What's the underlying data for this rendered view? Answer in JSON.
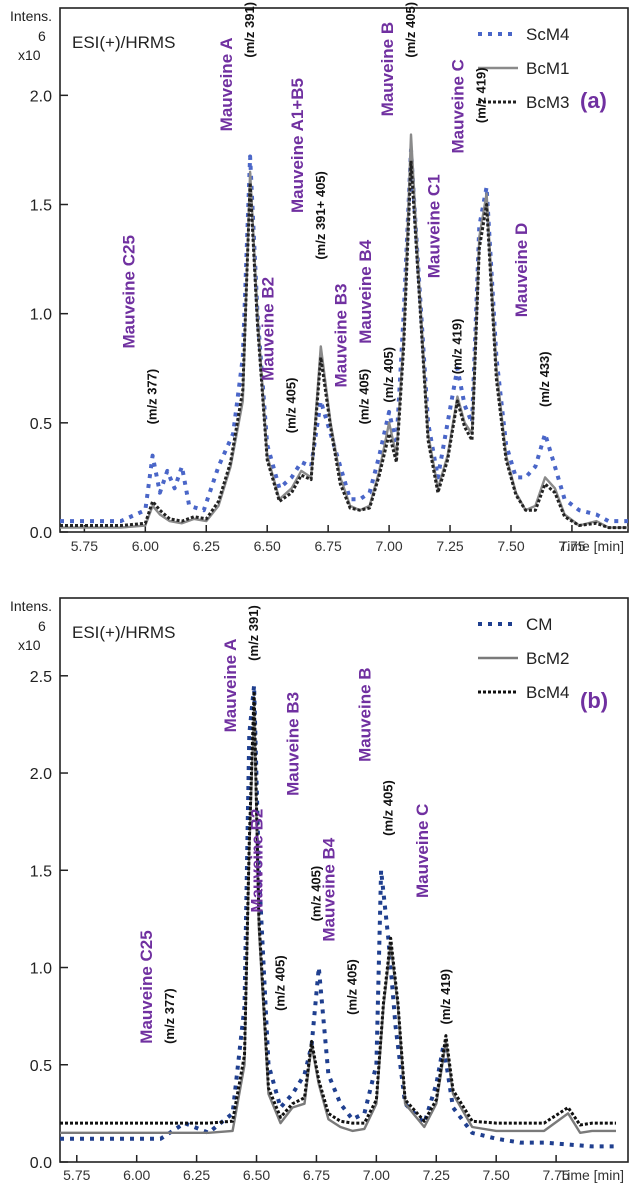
{
  "chart_data": [
    {
      "type": "line",
      "panel_label": "(a)",
      "method_label": "ESI(+)/HRMS",
      "ylabel_top": "Intens.",
      "ylabel_exp": "6",
      "ylabel_mult": "x10",
      "xlabel": "Time [min]",
      "xlim": [
        5.65,
        7.98
      ],
      "ylim": [
        0,
        2.4
      ],
      "xticks": [
        "5.75",
        "6.00",
        "6.25",
        "6.50",
        "6.75",
        "7.00",
        "7.25",
        "7.50",
        "7.75"
      ],
      "yticks": [
        "0.0",
        "0.5",
        "1.0",
        "1.5",
        "2.0"
      ],
      "legend_position": "top-right",
      "series": [
        {
          "name": "ScM4",
          "color": "#4a66c8",
          "style": "dotted",
          "x": [
            5.65,
            5.9,
            6.0,
            6.03,
            6.06,
            6.09,
            6.12,
            6.15,
            6.18,
            6.24,
            6.3,
            6.36,
            6.4,
            6.43,
            6.46,
            6.5,
            6.55,
            6.6,
            6.64,
            6.68,
            6.72,
            6.76,
            6.8,
            6.84,
            6.88,
            6.92,
            6.96,
            7.0,
            7.03,
            7.06,
            7.09,
            7.12,
            7.16,
            7.2,
            7.24,
            7.28,
            7.31,
            7.34,
            7.37,
            7.4,
            7.44,
            7.48,
            7.52,
            7.56,
            7.6,
            7.64,
            7.68,
            7.72,
            7.78,
            7.85,
            7.9,
            7.98
          ],
          "y": [
            0.05,
            0.05,
            0.1,
            0.35,
            0.18,
            0.28,
            0.2,
            0.3,
            0.12,
            0.1,
            0.3,
            0.45,
            0.8,
            1.72,
            1.0,
            0.4,
            0.2,
            0.25,
            0.32,
            0.3,
            0.6,
            0.45,
            0.3,
            0.15,
            0.15,
            0.18,
            0.35,
            0.55,
            0.4,
            1.0,
            1.75,
            1.2,
            0.5,
            0.25,
            0.5,
            0.75,
            0.58,
            0.5,
            1.4,
            1.58,
            0.8,
            0.4,
            0.25,
            0.25,
            0.3,
            0.45,
            0.3,
            0.15,
            0.1,
            0.08,
            0.05,
            0.05
          ]
        },
        {
          "name": "BcM1",
          "color": "#8a8a8a",
          "style": "solid",
          "x": [
            5.65,
            5.9,
            6.0,
            6.03,
            6.06,
            6.1,
            6.15,
            6.2,
            6.25,
            6.3,
            6.35,
            6.4,
            6.43,
            6.46,
            6.5,
            6.55,
            6.6,
            6.64,
            6.68,
            6.72,
            6.76,
            6.8,
            6.84,
            6.88,
            6.92,
            6.96,
            7.0,
            7.03,
            7.06,
            7.09,
            7.12,
            7.16,
            7.2,
            7.24,
            7.28,
            7.31,
            7.34,
            7.37,
            7.4,
            7.44,
            7.48,
            7.52,
            7.56,
            7.6,
            7.64,
            7.68,
            7.72,
            7.78,
            7.85,
            7.9,
            7.98
          ],
          "y": [
            0.02,
            0.02,
            0.03,
            0.12,
            0.08,
            0.05,
            0.04,
            0.06,
            0.05,
            0.12,
            0.3,
            0.6,
            1.65,
            1.0,
            0.35,
            0.15,
            0.2,
            0.28,
            0.25,
            0.85,
            0.5,
            0.25,
            0.12,
            0.1,
            0.12,
            0.28,
            0.5,
            0.35,
            0.9,
            1.82,
            1.2,
            0.45,
            0.2,
            0.35,
            0.62,
            0.5,
            0.45,
            1.35,
            1.55,
            0.75,
            0.35,
            0.18,
            0.1,
            0.12,
            0.25,
            0.2,
            0.08,
            0.03,
            0.05,
            0.02,
            0.02
          ]
        },
        {
          "name": "BcM3",
          "color": "#222222",
          "style": "densedot",
          "x": [
            5.65,
            5.9,
            6.0,
            6.03,
            6.06,
            6.1,
            6.15,
            6.2,
            6.25,
            6.3,
            6.35,
            6.4,
            6.43,
            6.46,
            6.5,
            6.55,
            6.6,
            6.64,
            6.68,
            6.72,
            6.76,
            6.8,
            6.84,
            6.88,
            6.92,
            6.96,
            7.0,
            7.03,
            7.06,
            7.09,
            7.12,
            7.16,
            7.2,
            7.24,
            7.28,
            7.31,
            7.34,
            7.37,
            7.4,
            7.44,
            7.48,
            7.52,
            7.56,
            7.6,
            7.64,
            7.68,
            7.72,
            7.78,
            7.85,
            7.9,
            7.98
          ],
          "y": [
            0.03,
            0.03,
            0.04,
            0.14,
            0.1,
            0.06,
            0.05,
            0.07,
            0.06,
            0.14,
            0.32,
            0.65,
            1.6,
            0.95,
            0.33,
            0.14,
            0.18,
            0.26,
            0.24,
            0.8,
            0.48,
            0.22,
            0.11,
            0.1,
            0.11,
            0.26,
            0.45,
            0.32,
            0.85,
            1.7,
            1.15,
            0.42,
            0.18,
            0.33,
            0.6,
            0.48,
            0.42,
            1.3,
            1.5,
            0.7,
            0.33,
            0.17,
            0.1,
            0.1,
            0.22,
            0.18,
            0.07,
            0.03,
            0.04,
            0.02,
            0.02
          ]
        }
      ],
      "annotations": [
        {
          "name": "Mauveine C25",
          "mz": "(m/z 377)",
          "x": 6.03,
          "y_cmp": 1.1,
          "y_mz": 0.62
        },
        {
          "name": "Mauveine A",
          "mz": "(m/z 391)",
          "x": 6.43,
          "y_cmp": 2.05,
          "y_mz": 2.3
        },
        {
          "name": "Mauveine B2",
          "mz": "(m/z 405)",
          "x": 6.6,
          "y_cmp": 0.93,
          "y_mz": 0.58
        },
        {
          "name": "Mauveine A1+B5",
          "mz": "(m/z  391+ 405)",
          "x": 6.72,
          "y_cmp": 1.77,
          "y_mz": 1.45
        },
        {
          "name": "Mauveine B3",
          "mz": "(m/z 405)",
          "x": 6.9,
          "y_cmp": 0.9,
          "y_mz": 0.62
        },
        {
          "name": "Mauveine B4",
          "mz": "(m/z 405)",
          "x": 7.0,
          "y_cmp": 1.1,
          "y_mz": 0.72
        },
        {
          "name": "Mauveine B",
          "mz": "(m/z 405)",
          "x": 7.09,
          "y_cmp": 2.12,
          "y_mz": 2.3
        },
        {
          "name": "Mauveine C1",
          "mz": "(m/z 419)",
          "x": 7.28,
          "y_cmp": 1.4,
          "y_mz": 0.85
        },
        {
          "name": "Mauveine C",
          "mz": "(m/z 419)",
          "x": 7.38,
          "y_cmp": 1.95,
          "y_mz": 2.0
        },
        {
          "name": "Mauveine D",
          "mz": "(m/z 433)",
          "x": 7.64,
          "y_cmp": 1.2,
          "y_mz": 0.7
        }
      ]
    },
    {
      "type": "line",
      "panel_label": "(b)",
      "method_label": "ESI(+)/HRMS",
      "ylabel_top": "Intens.",
      "ylabel_exp": "6",
      "ylabel_mult": "x10",
      "xlabel": "Time [min]",
      "xlim": [
        5.68,
        8.05
      ],
      "ylim": [
        0,
        2.9
      ],
      "xticks": [
        "5.75",
        "6.00",
        "6.25",
        "6.50",
        "6.75",
        "7.00",
        "7.25",
        "7.50",
        "7.75"
      ],
      "yticks": [
        "0.0",
        "0.5",
        "1.0",
        "1.5",
        "2.0",
        "2.5"
      ],
      "legend_position": "top-right",
      "series": [
        {
          "name": "CM",
          "color": "#1f3f8f",
          "style": "dotted",
          "x": [
            5.68,
            5.9,
            6.1,
            6.2,
            6.3,
            6.4,
            6.45,
            6.47,
            6.49,
            6.51,
            6.55,
            6.6,
            6.65,
            6.7,
            6.73,
            6.76,
            6.8,
            6.85,
            6.9,
            6.95,
            7.0,
            7.02,
            7.05,
            7.08,
            7.12,
            7.2,
            7.25,
            7.28,
            7.32,
            7.4,
            7.5,
            7.6,
            7.7,
            7.8,
            7.9,
            8.0
          ],
          "y": [
            0.12,
            0.12,
            0.12,
            0.2,
            0.15,
            0.25,
            0.8,
            2.2,
            2.45,
            1.5,
            0.5,
            0.28,
            0.35,
            0.45,
            0.6,
            1.0,
            0.45,
            0.3,
            0.22,
            0.25,
            0.5,
            1.5,
            1.15,
            0.7,
            0.3,
            0.2,
            0.4,
            0.6,
            0.28,
            0.15,
            0.12,
            0.1,
            0.1,
            0.09,
            0.08,
            0.08
          ]
        },
        {
          "name": "BcM2",
          "color": "#7a7a7a",
          "style": "solid",
          "x": [
            5.68,
            5.9,
            6.1,
            6.3,
            6.4,
            6.45,
            6.47,
            6.49,
            6.51,
            6.55,
            6.6,
            6.65,
            6.7,
            6.73,
            6.76,
            6.8,
            6.85,
            6.9,
            6.95,
            7.0,
            7.03,
            7.06,
            7.09,
            7.12,
            7.2,
            7.25,
            7.29,
            7.32,
            7.4,
            7.5,
            7.6,
            7.7,
            7.8,
            7.85,
            7.9,
            8.0
          ],
          "y": [
            0.15,
            0.15,
            0.15,
            0.15,
            0.16,
            0.5,
            1.6,
            2.35,
            1.2,
            0.35,
            0.2,
            0.28,
            0.3,
            0.6,
            0.4,
            0.22,
            0.18,
            0.16,
            0.17,
            0.3,
            0.8,
            1.12,
            0.8,
            0.3,
            0.18,
            0.3,
            0.62,
            0.35,
            0.18,
            0.16,
            0.16,
            0.16,
            0.25,
            0.15,
            0.16,
            0.16
          ]
        },
        {
          "name": "BcM4",
          "color": "#111111",
          "style": "densedot",
          "x": [
            5.68,
            5.9,
            6.1,
            6.3,
            6.4,
            6.45,
            6.47,
            6.49,
            6.51,
            6.55,
            6.6,
            6.65,
            6.7,
            6.73,
            6.76,
            6.8,
            6.85,
            6.9,
            6.95,
            7.0,
            7.03,
            7.06,
            7.09,
            7.12,
            7.2,
            7.25,
            7.29,
            7.32,
            7.4,
            7.5,
            7.6,
            7.7,
            7.8,
            7.85,
            7.9,
            8.0
          ],
          "y": [
            0.2,
            0.2,
            0.2,
            0.2,
            0.21,
            0.55,
            1.65,
            2.42,
            1.25,
            0.38,
            0.23,
            0.3,
            0.33,
            0.62,
            0.42,
            0.25,
            0.21,
            0.2,
            0.2,
            0.32,
            0.82,
            1.15,
            0.82,
            0.32,
            0.21,
            0.32,
            0.65,
            0.37,
            0.21,
            0.2,
            0.2,
            0.2,
            0.28,
            0.19,
            0.2,
            0.2
          ]
        }
      ],
      "annotations": [
        {
          "name": "Mauveine C25",
          "mz": "(m/z 377)",
          "x": 6.14,
          "y_cmp": 0.9,
          "y_mz": 0.75
        },
        {
          "name": "Mauveine A",
          "mz": "(m/z 391)",
          "x": 6.49,
          "y_cmp": 2.45,
          "y_mz": 2.72
        },
        {
          "name": "Mauveine B2",
          "mz": "(m/z 405)",
          "x": 6.6,
          "y_cmp": 1.55,
          "y_mz": 0.92
        },
        {
          "name": "Mauveine B3",
          "mz": "(m/z 405)",
          "x": 6.75,
          "y_cmp": 2.15,
          "y_mz": 1.38
        },
        {
          "name": "Mauveine B4",
          "mz": "(m/z 405)",
          "x": 6.9,
          "y_cmp": 1.4,
          "y_mz": 0.9
        },
        {
          "name": "Mauveine B",
          "mz": "(m/z 405)",
          "x": 7.05,
          "y_cmp": 2.3,
          "y_mz": 1.82
        },
        {
          "name": "Mauveine C",
          "mz": "(m/z 419)",
          "x": 7.29,
          "y_cmp": 1.6,
          "y_mz": 0.85
        }
      ]
    }
  ]
}
